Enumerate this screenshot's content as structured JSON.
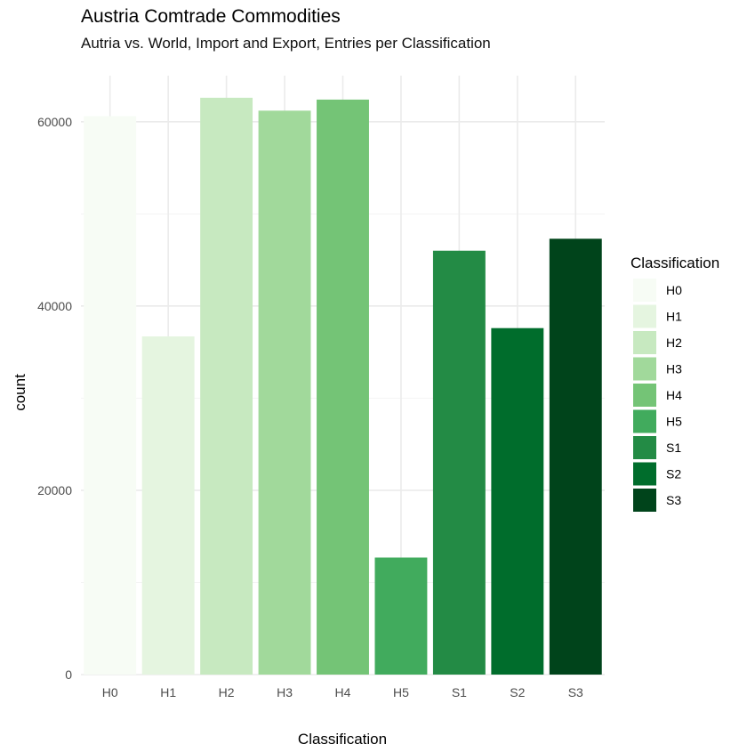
{
  "chart_data": {
    "type": "bar",
    "title": "Austria Comtrade Commodities",
    "subtitle": "Autria vs. World, Import and Export, Entries per Classification",
    "xlabel": "Classification",
    "ylabel": "count",
    "categories": [
      "H0",
      "H1",
      "H2",
      "H3",
      "H4",
      "H5",
      "S1",
      "S2",
      "S3"
    ],
    "values": [
      60600,
      36700,
      62600,
      61200,
      62400,
      12700,
      46000,
      37600,
      47300
    ],
    "colors": [
      "#f7fcf5",
      "#e5f5e0",
      "#c7e9c0",
      "#a1d99b",
      "#74c476",
      "#41ab5d",
      "#238b45",
      "#006d2c",
      "#00441b"
    ],
    "ylim": [
      0,
      65000
    ],
    "yticks": [
      0,
      20000,
      40000,
      60000
    ],
    "grid": true,
    "legend": {
      "title": "Classification",
      "position": "right",
      "entries": [
        "H0",
        "H1",
        "H2",
        "H3",
        "H4",
        "H5",
        "S1",
        "S2",
        "S3"
      ]
    }
  }
}
